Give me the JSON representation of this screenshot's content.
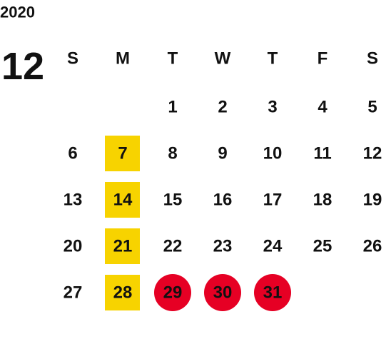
{
  "year": "2020",
  "month": "12",
  "weekdays": [
    "S",
    "M",
    "T",
    "W",
    "T",
    "F",
    "S"
  ],
  "weeks": [
    [
      null,
      null,
      "1",
      "2",
      "3",
      "4",
      "5"
    ],
    [
      "6",
      "7",
      "8",
      "9",
      "10",
      "11",
      "12"
    ],
    [
      "13",
      "14",
      "15",
      "16",
      "17",
      "18",
      "19"
    ],
    [
      "20",
      "21",
      "22",
      "23",
      "24",
      "25",
      "26"
    ],
    [
      "27",
      "28",
      "29",
      "30",
      "31",
      null,
      null
    ]
  ]
}
